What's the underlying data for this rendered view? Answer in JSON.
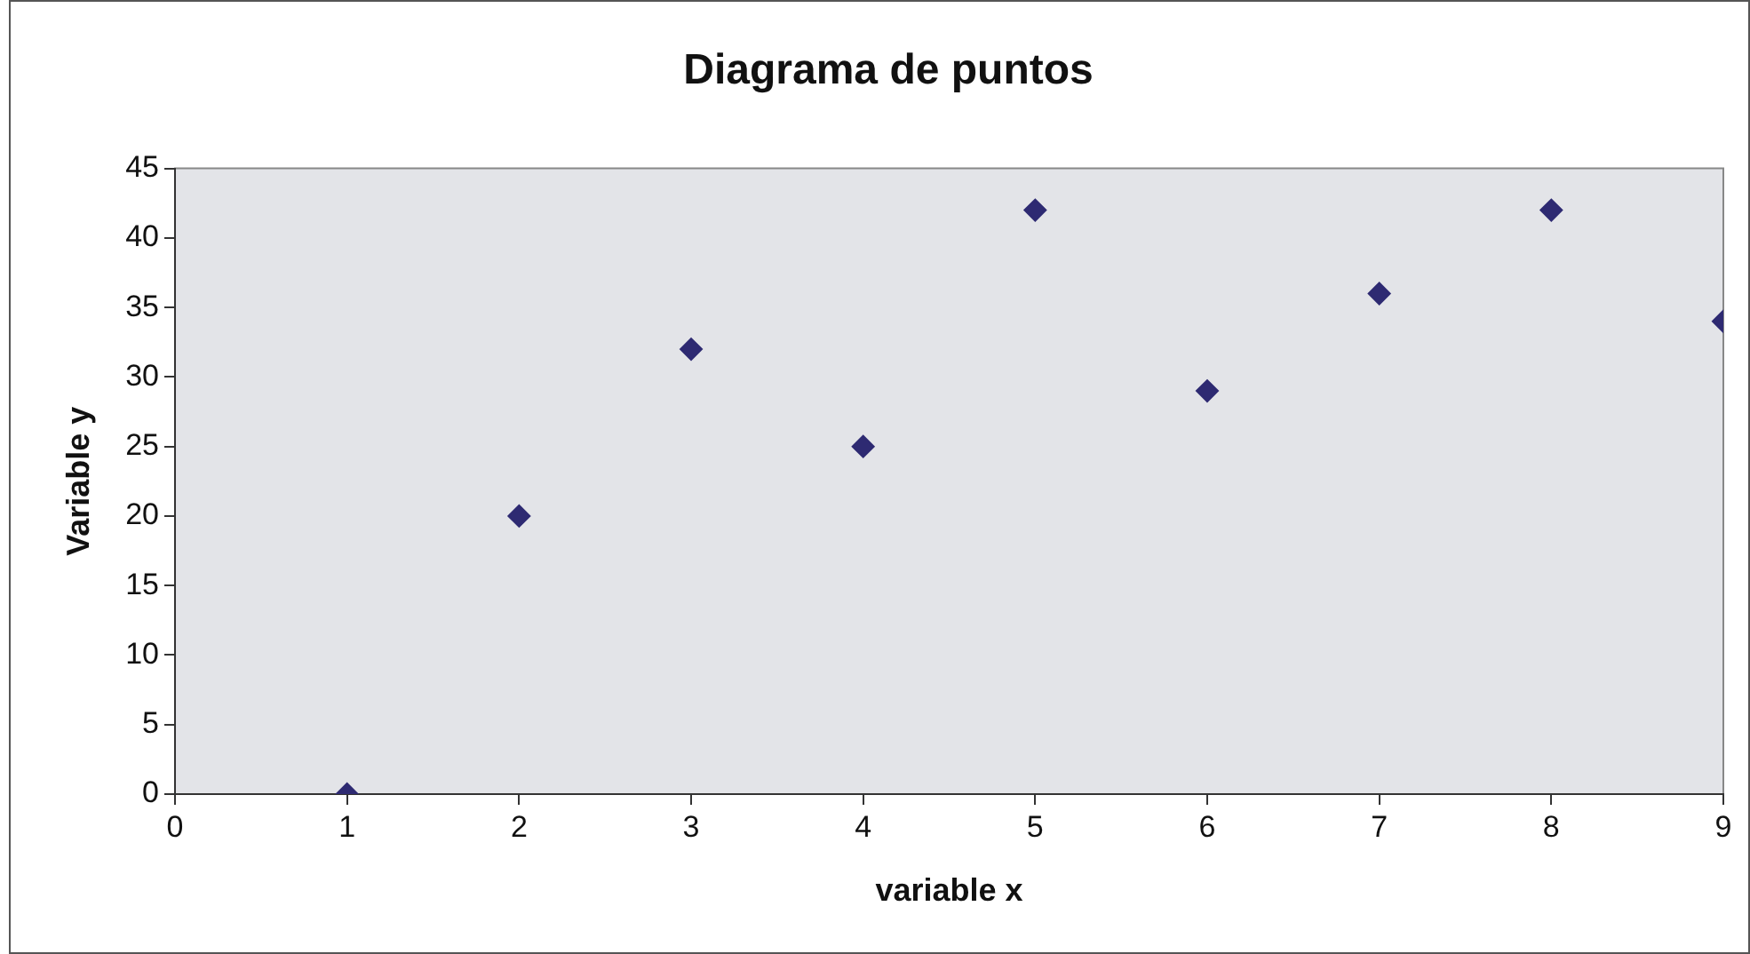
{
  "chart_data": {
    "type": "scatter",
    "title": "Diagrama de puntos",
    "xlabel": "variable x",
    "ylabel": "Variable y",
    "x": [
      1,
      2,
      3,
      4,
      5,
      6,
      7,
      8,
      9
    ],
    "values": [
      0,
      20,
      32,
      25,
      42,
      29,
      36,
      42,
      34
    ],
    "color": "#2e2a72",
    "xlim": [
      0,
      9
    ],
    "xticks": [
      0,
      1,
      2,
      3,
      4,
      5,
      6,
      7,
      8,
      9
    ],
    "ylim": [
      0,
      45
    ],
    "yticks": [
      0,
      5,
      10,
      15,
      20,
      25,
      30,
      35,
      40,
      45
    ],
    "grid": false,
    "legend": false,
    "marker": "diamond"
  }
}
